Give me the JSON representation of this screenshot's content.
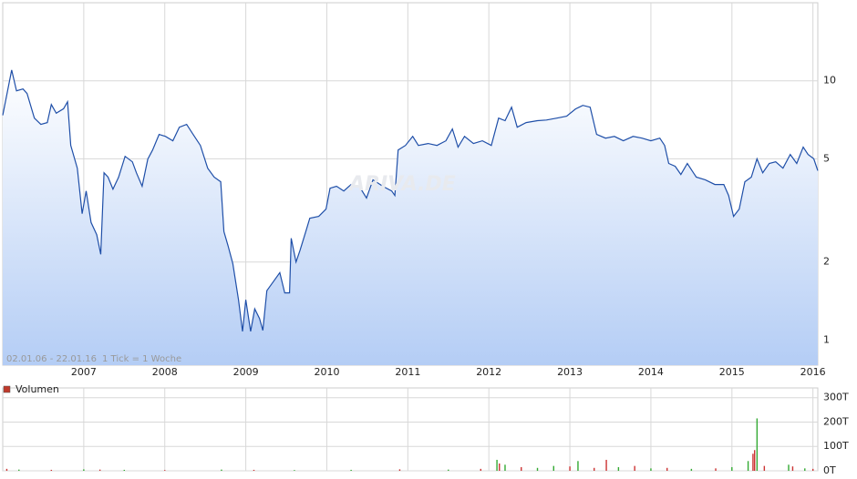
{
  "chart_data": [
    {
      "type": "line",
      "log_scale": true,
      "grid": true,
      "note_range": "02.01.06 - 22.01.16",
      "note_tick": "1 Tick = 1 Woche",
      "watermark": "ARIVA.DE",
      "xlim": [
        2006,
        2016.06
      ],
      "xticks": [
        2007,
        2008,
        2009,
        2010,
        2011,
        2012,
        2013,
        2014,
        2015,
        2016
      ],
      "ylim": [
        0.8,
        20
      ],
      "yticks": [
        1,
        2,
        5,
        10
      ],
      "series": [
        {
          "color": "#1f4fa8",
          "x": [
            2006.0,
            2006.06,
            2006.11,
            2006.17,
            2006.25,
            2006.3,
            2006.39,
            2006.47,
            2006.55,
            2006.6,
            2006.66,
            2006.75,
            2006.8,
            2006.84,
            2006.92,
            2006.98,
            2007.03,
            2007.09,
            2007.16,
            2007.21,
            2007.25,
            2007.3,
            2007.36,
            2007.43,
            2007.51,
            2007.6,
            2007.65,
            2007.72,
            2007.79,
            2007.85,
            2007.93,
            2008.01,
            2008.1,
            2008.18,
            2008.27,
            2008.35,
            2008.44,
            2008.53,
            2008.61,
            2008.69,
            2008.73,
            2008.78,
            2008.84,
            2008.91,
            2008.96,
            2009.0,
            2009.06,
            2009.11,
            2009.17,
            2009.21,
            2009.26,
            2009.34,
            2009.42,
            2009.48,
            2009.54,
            2009.56,
            2009.62,
            2009.67,
            2009.74,
            2009.79,
            2009.9,
            2009.99,
            2010.04,
            2010.12,
            2010.21,
            2010.3,
            2010.4,
            2010.49,
            2010.57,
            2010.69,
            2010.8,
            2010.84,
            2010.88,
            2010.97,
            2011.06,
            2011.13,
            2011.25,
            2011.36,
            2011.47,
            2011.55,
            2011.62,
            2011.7,
            2011.81,
            2011.92,
            2012.03,
            2012.12,
            2012.2,
            2012.28,
            2012.35,
            2012.46,
            2012.6,
            2012.71,
            2012.84,
            2012.96,
            2013.07,
            2013.16,
            2013.25,
            2013.33,
            2013.44,
            2013.55,
            2013.66,
            2013.78,
            2013.89,
            2014.0,
            2014.11,
            2014.17,
            2014.22,
            2014.3,
            2014.37,
            2014.45,
            2014.56,
            2014.67,
            2014.79,
            2014.9,
            2014.96,
            2015.02,
            2015.09,
            2015.16,
            2015.24,
            2015.31,
            2015.38,
            2015.46,
            2015.54,
            2015.63,
            2015.72,
            2015.8,
            2015.88,
            2015.94,
            2016.01,
            2016.06
          ],
          "values": [
            7.36,
            9.15,
            11.0,
            9.15,
            9.3,
            8.93,
            7.18,
            6.79,
            6.9,
            8.1,
            7.5,
            7.8,
            8.3,
            5.63,
            4.6,
            3.07,
            3.76,
            2.84,
            2.55,
            2.14,
            4.42,
            4.25,
            3.82,
            4.25,
            5.11,
            4.87,
            4.42,
            3.92,
            4.99,
            5.41,
            6.21,
            6.1,
            5.87,
            6.62,
            6.79,
            6.21,
            5.63,
            4.6,
            4.25,
            4.08,
            2.62,
            2.32,
            1.97,
            1.43,
            1.08,
            1.43,
            1.08,
            1.32,
            1.21,
            1.09,
            1.55,
            1.68,
            1.82,
            1.52,
            1.52,
            2.47,
            2.0,
            2.22,
            2.62,
            2.95,
            3.0,
            3.2,
            3.85,
            3.92,
            3.76,
            3.98,
            3.92,
            3.53,
            4.15,
            3.92,
            3.76,
            3.61,
            5.41,
            5.63,
            6.1,
            5.63,
            5.73,
            5.63,
            5.87,
            6.52,
            5.55,
            6.1,
            5.73,
            5.87,
            5.63,
            7.18,
            7.02,
            7.91,
            6.62,
            6.9,
            7.02,
            7.06,
            7.18,
            7.3,
            7.79,
            8.04,
            7.91,
            6.21,
            6.01,
            6.1,
            5.87,
            6.1,
            6.01,
            5.87,
            6.01,
            5.63,
            4.8,
            4.68,
            4.35,
            4.8,
            4.25,
            4.15,
            3.98,
            3.98,
            3.61,
            3.0,
            3.2,
            4.08,
            4.25,
            5.0,
            4.42,
            4.8,
            4.87,
            4.6,
            5.2,
            4.8,
            5.55,
            5.2,
            5.0,
            4.5
          ]
        }
      ]
    },
    {
      "type": "bar",
      "grid": true,
      "xlim": [
        2006,
        2016.06
      ],
      "xticks": [
        2007,
        2008,
        2009,
        2010,
        2011,
        2012,
        2013,
        2014,
        2015,
        2016
      ],
      "ylim": [
        0,
        340
      ],
      "yticks": [
        {
          "value": 0,
          "label": "0T"
        },
        {
          "value": 100,
          "label": "100T"
        },
        {
          "value": 200,
          "label": "200T"
        },
        {
          "value": 300,
          "label": "300T"
        }
      ],
      "series": [
        {
          "name": "Volumen",
          "color": "#c0392b",
          "x": [
            2006.05,
            2006.2,
            2006.6,
            2007.0,
            2007.2,
            2007.5,
            2008.0,
            2008.7,
            2009.1,
            2009.6,
            2010.3,
            2010.9,
            2011.5,
            2011.9,
            2012.1,
            2012.13,
            2012.2,
            2012.4,
            2012.6,
            2012.8,
            2013.0,
            2013.1,
            2013.3,
            2013.45,
            2013.6,
            2013.8,
            2014.0,
            2014.2,
            2014.5,
            2014.8,
            2015.0,
            2015.2,
            2015.26,
            2015.28,
            2015.31,
            2015.4,
            2015.7,
            2015.75,
            2015.9,
            2016.0
          ],
          "values": [
            8,
            5,
            4,
            6,
            5,
            4,
            3,
            5,
            4,
            3,
            4,
            6,
            5,
            8,
            45,
            30,
            25,
            15,
            12,
            20,
            18,
            40,
            12,
            45,
            15,
            20,
            10,
            12,
            8,
            10,
            15,
            40,
            70,
            85,
            215,
            20,
            25,
            18,
            10,
            8
          ],
          "colors": [
            "#cc3333",
            "#33aa33",
            "#cc3333",
            "#33aa33",
            "#cc3333",
            "#33aa33",
            "#cc3333",
            "#33aa33",
            "#cc3333",
            "#33aa33",
            "#33aa33",
            "#cc3333",
            "#33aa33",
            "#cc3333",
            "#33aa33",
            "#cc3333",
            "#33aa33",
            "#cc3333",
            "#33aa33",
            "#33aa33",
            "#cc3333",
            "#33aa33",
            "#cc3333",
            "#cc3333",
            "#33aa33",
            "#cc3333",
            "#33aa33",
            "#cc3333",
            "#33aa33",
            "#cc3333",
            "#33aa33",
            "#33aa33",
            "#cc3333",
            "#cc3333",
            "#33aa33",
            "#cc3333",
            "#33aa33",
            "#cc3333",
            "#33aa33",
            "#cc3333"
          ]
        }
      ]
    }
  ]
}
